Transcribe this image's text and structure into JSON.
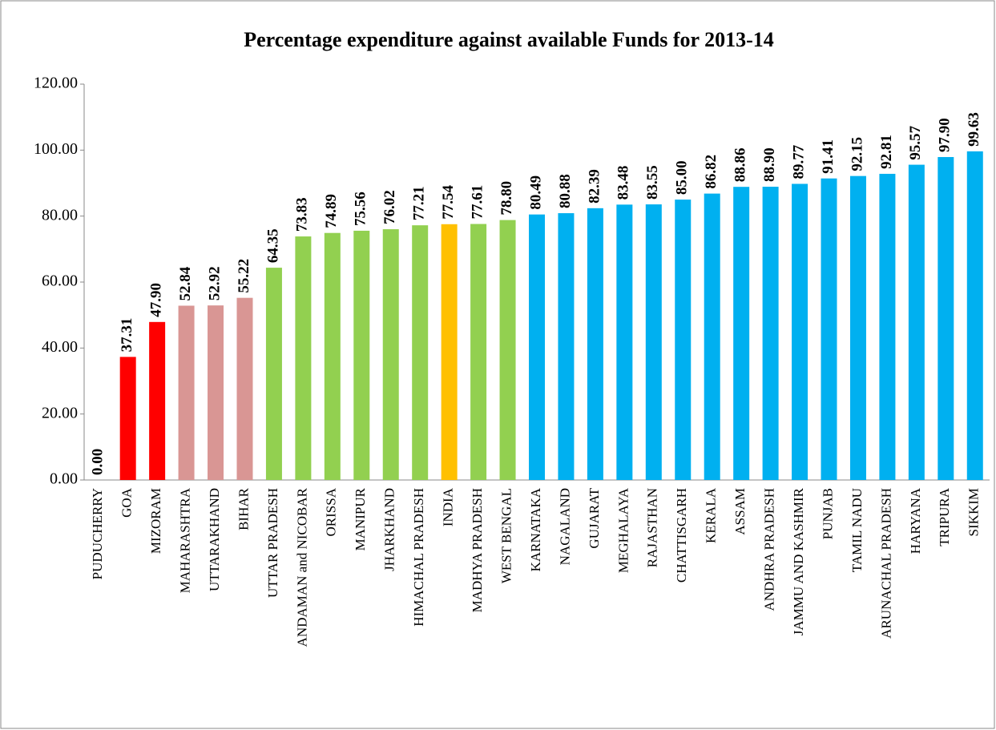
{
  "chart_data": {
    "type": "bar",
    "title": "Percentage expenditure against available Funds for 2013-14",
    "categories": [
      "PUDUCHERRY",
      "GOA",
      "MIZORAM",
      "MAHARASHTRA",
      "UTTARAKHAND",
      "BIHAR",
      "UTTAR PRADESH",
      "ANDAMAN and NICOBAR",
      "ORISSA",
      "MANIPUR",
      "JHARKHAND",
      "HIMACHAL PRADESH",
      "INDIA",
      "MADHYA PRADESH",
      "WEST BENGAL",
      "KARNATAKA",
      "NAGALAND",
      "GUJARAT",
      "MEGHALAYA",
      "RAJASTHAN",
      "CHATTISGARH",
      "KERALA",
      "ASSAM",
      "ANDHRA PRADESH",
      "JAMMU AND KASHMIR",
      "PUNJAB",
      "TAMIL NADU",
      "ARUNACHAL PRADESH",
      "HARYANA",
      "TRIPURA",
      "SIKKIM"
    ],
    "values": [
      0,
      37.31,
      47.9,
      52.84,
      52.92,
      55.22,
      64.35,
      73.83,
      74.89,
      75.56,
      76.02,
      77.21,
      77.54,
      77.61,
      78.8,
      80.49,
      80.88,
      82.39,
      83.48,
      83.55,
      85,
      86.82,
      88.86,
      88.9,
      89.77,
      91.41,
      92.15,
      92.81,
      95.57,
      97.9,
      99.63
    ],
    "value_labels": [
      "0.00",
      "37.31",
      "47.90",
      "52.84",
      "52.92",
      "55.22",
      "64.35",
      "73.83",
      "74.89",
      "75.56",
      "76.02",
      "77.21",
      "77.54",
      "77.61",
      "78.80",
      "80.49",
      "80.88",
      "82.39",
      "83.48",
      "83.55",
      "85.00",
      "86.82",
      "88.86",
      "88.90",
      "89.77",
      "91.41",
      "92.15",
      "92.81",
      "95.57",
      "97.90",
      "99.63"
    ],
    "colors": [
      "#ff0000",
      "#ff0000",
      "#ff0000",
      "#d99694",
      "#d99694",
      "#d99694",
      "#92d050",
      "#92d050",
      "#92d050",
      "#92d050",
      "#92d050",
      "#92d050",
      "#ffc000",
      "#92d050",
      "#92d050",
      "#00b0f0",
      "#00b0f0",
      "#00b0f0",
      "#00b0f0",
      "#00b0f0",
      "#00b0f0",
      "#00b0f0",
      "#00b0f0",
      "#00b0f0",
      "#00b0f0",
      "#00b0f0",
      "#00b0f0",
      "#00b0f0",
      "#00b0f0",
      "#00b0f0",
      "#00b0f0"
    ],
    "ylim": [
      0,
      120
    ],
    "yticks": [
      {
        "value": 0,
        "label": "0.00"
      },
      {
        "value": 20,
        "label": "20.00"
      },
      {
        "value": 40,
        "label": "40.00"
      },
      {
        "value": 60,
        "label": "60.00"
      },
      {
        "value": 80,
        "label": "80.00"
      },
      {
        "value": 100,
        "label": "100.00"
      },
      {
        "value": 120,
        "label": "120.00"
      }
    ],
    "grid": false
  }
}
